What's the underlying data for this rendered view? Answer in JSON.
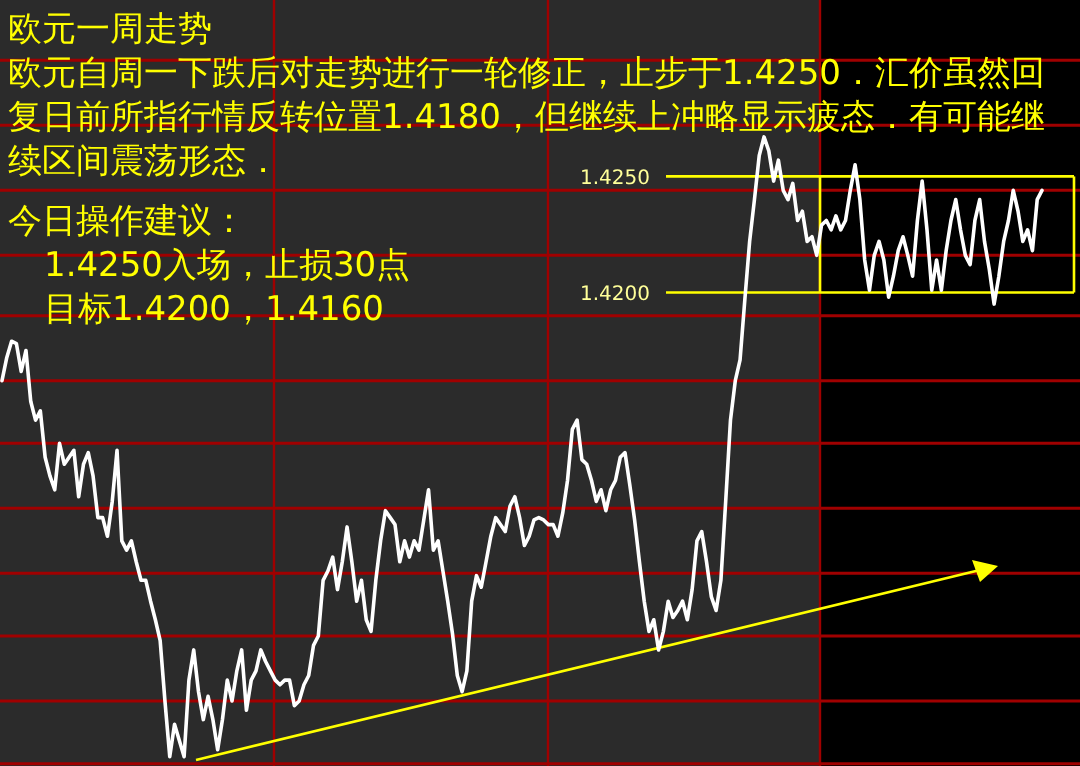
{
  "chart_data": {
    "type": "line",
    "title": "欧元一周走势",
    "annotations": [
      "欧元自周一下跌后对走势进行一轮修正，止步于1.4250．汇价虽然回复日前所指行情反转位置1.4180，但继续上冲略显示疲态．有可能继续区间震荡形态．",
      "今日操作建议：",
      "1.4250入场，止损30点",
      "目标1.4200，1.4160"
    ],
    "categories": [
      null,
      null,
      null,
      null,
      null,
      null,
      null,
      null,
      null,
      null,
      null,
      null,
      null,
      null,
      null,
      null,
      null,
      null,
      null,
      null,
      null,
      null,
      null,
      null,
      null,
      null,
      null,
      null,
      null,
      null,
      null,
      null,
      null,
      null,
      null,
      null,
      null,
      null,
      null,
      null,
      null,
      null,
      null,
      null,
      null,
      null,
      null,
      null,
      null,
      null,
      null,
      null,
      null,
      null,
      null,
      null,
      null,
      null,
      null,
      null,
      null,
      null,
      null,
      null,
      null,
      null,
      null,
      null,
      null,
      null,
      null,
      null,
      null,
      null,
      null,
      null,
      null,
      null,
      null,
      null,
      null,
      null,
      null,
      null,
      null,
      null,
      null,
      null,
      null,
      null,
      null,
      null,
      null,
      null,
      null,
      null,
      null,
      null,
      null,
      null,
      null,
      null,
      null,
      null,
      null,
      null,
      null,
      null,
      null,
      null,
      null,
      null,
      null,
      null,
      null,
      null,
      null,
      null,
      null,
      null,
      null,
      null,
      null,
      null,
      null,
      null,
      null,
      null,
      null,
      null,
      null,
      null,
      null,
      null,
      null,
      null,
      null,
      null,
      null,
      null,
      null,
      null,
      null,
      null,
      null,
      null,
      null,
      null,
      null,
      null,
      null,
      null,
      null,
      null,
      null,
      null,
      null,
      null,
      null,
      null,
      null,
      null,
      null,
      null,
      null,
      null,
      null,
      null,
      null,
      null,
      null,
      null,
      null,
      null,
      null,
      null,
      null,
      null,
      null,
      null,
      null,
      null,
      null,
      null,
      null,
      null,
      null,
      null,
      null,
      null,
      null,
      null,
      null,
      null,
      null,
      null,
      null,
      null,
      null,
      null,
      null,
      null,
      null,
      null,
      null,
      null,
      null,
      null,
      null,
      null,
      null,
      null,
      null,
      null,
      null,
      null,
      null,
      null
    ],
    "ylim": [
      1.3996,
      1.4326
    ],
    "yticks": [
      {
        "value": 1.43,
        "label": null
      },
      {
        "value": 1.4272,
        "label": null
      },
      {
        "value": 1.425,
        "label": "1.4250"
      },
      {
        "value": 1.4244,
        "label": null
      },
      {
        "value": 1.4216,
        "label": null
      },
      {
        "value": 1.42,
        "label": "1.4200"
      },
      {
        "value": 1.419,
        "label": null
      },
      {
        "value": 1.4162,
        "label": null
      },
      {
        "value": 1.4135,
        "label": null
      },
      {
        "value": 1.4107,
        "label": null
      },
      {
        "value": 1.4079,
        "label": null
      },
      {
        "value": 1.4052,
        "label": null
      },
      {
        "value": 1.4024,
        "label": null
      },
      {
        "value": 1.3997,
        "label": null
      }
    ],
    "grid": "y",
    "tick_labels": "y",
    "ref_lines": [
      {
        "axis": "y",
        "value": 1.425,
        "color": "#ffff00"
      },
      {
        "axis": "y",
        "value": 1.42,
        "color": "#ffff00"
      }
    ],
    "series": [
      {
        "type": "line",
        "color": "#ffffff",
        "values": [
          1.4162,
          1.4172,
          1.4179,
          1.4178,
          1.4166,
          1.4175,
          1.4153,
          1.4145,
          1.4149,
          1.4129,
          1.4121,
          1.4115,
          1.4135,
          1.4126,
          1.4129,
          1.4132,
          1.4112,
          1.4126,
          1.4131,
          1.4121,
          1.4103,
          1.4103,
          1.4095,
          1.411,
          1.4132,
          1.4093,
          1.4089,
          1.4093,
          1.4084,
          1.4076,
          1.4076,
          1.4067,
          1.4059,
          1.405,
          1.4024,
          1.4,
          1.4014,
          1.4007,
          1.4,
          1.4033,
          1.4046,
          1.4028,
          1.4016,
          1.4026,
          1.4016,
          1.4003,
          1.4016,
          1.4033,
          1.4024,
          1.4037,
          1.4046,
          1.402,
          1.4033,
          1.4037,
          1.4046,
          1.4041,
          1.4037,
          1.4033,
          1.4031,
          1.4033,
          1.4033,
          1.4022,
          1.4024,
          1.4031,
          1.4035,
          1.4048,
          1.4052,
          1.4076,
          1.408,
          1.4086,
          1.4072,
          1.4084,
          1.4099,
          1.4084,
          1.4067,
          1.4076,
          1.4059,
          1.4054,
          1.4076,
          1.4093,
          1.4106,
          1.4103,
          1.41,
          1.4084,
          1.4093,
          1.4086,
          1.4093,
          1.4089,
          1.4102,
          1.4115,
          1.4089,
          1.4093,
          1.408,
          1.4067,
          1.4053,
          1.4035,
          1.4028,
          1.4037,
          1.4067,
          1.4078,
          1.4073,
          1.4084,
          1.4095,
          1.4103,
          1.41,
          1.4097,
          1.4108,
          1.4112,
          1.4103,
          1.4091,
          1.4095,
          1.4102,
          1.4103,
          1.4102,
          1.41,
          1.41,
          1.4095,
          1.4105,
          1.4119,
          1.4141,
          1.4145,
          1.4128,
          1.4126,
          1.4119,
          1.411,
          1.4115,
          1.4106,
          1.4115,
          1.4119,
          1.4129,
          1.4131,
          1.4117,
          1.4102,
          1.4084,
          1.4067,
          1.4054,
          1.4059,
          1.4046,
          1.4054,
          1.4067,
          1.406,
          1.4063,
          1.4067,
          1.4059,
          1.4072,
          1.4093,
          1.4097,
          1.4084,
          1.4069,
          1.4063,
          1.4076,
          1.411,
          1.4145,
          1.4162,
          1.4171,
          1.4197,
          1.4222,
          1.424,
          1.4259,
          1.4267,
          1.4261,
          1.4248,
          1.4257,
          1.4244,
          1.424,
          1.4247,
          1.4231,
          1.4235,
          1.4222,
          1.4224,
          1.4216,
          1.4229,
          1.4231,
          1.4227,
          1.4233,
          1.4227,
          1.4231,
          1.4244,
          1.4255,
          1.424,
          1.4214,
          1.4201,
          1.4216,
          1.4222,
          1.4214,
          1.4198,
          1.4207,
          1.4218,
          1.4224,
          1.4216,
          1.4207,
          1.4231,
          1.4248,
          1.4227,
          1.4201,
          1.4214,
          1.4201,
          1.4218,
          1.4231,
          1.424,
          1.4227,
          1.4216,
          1.4212,
          1.4231,
          1.424,
          1.4222,
          1.421,
          1.4195,
          1.4207,
          1.4222,
          1.4231,
          1.4244,
          1.4235,
          1.4222,
          1.4227,
          1.4218,
          1.424,
          1.4244
        ]
      }
    ]
  }
}
